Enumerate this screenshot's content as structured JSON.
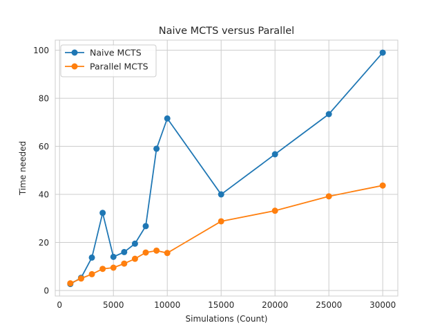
{
  "chart_data": {
    "type": "line",
    "title": "Naive MCTS versus Parallel",
    "xlabel": "Simulations (Count)",
    "ylabel": "Time needed",
    "xlim": [
      -400,
      31400
    ],
    "ylim": [
      -2.3,
      104.2
    ],
    "xticks": [
      0,
      5000,
      10000,
      15000,
      20000,
      25000,
      30000
    ],
    "yticks": [
      0,
      20,
      40,
      60,
      80,
      100
    ],
    "grid": true,
    "legend_position": "top-left",
    "x": [
      1000,
      2000,
      3000,
      4000,
      5000,
      6000,
      7000,
      8000,
      9000,
      10000,
      15000,
      20000,
      25000,
      30000
    ],
    "series": [
      {
        "name": "Naive MCTS",
        "color": "#1f77b4",
        "values": [
          2.7,
          5.3,
          13.7,
          32.3,
          14.0,
          16.0,
          19.5,
          26.8,
          59.0,
          71.6,
          40.0,
          56.7,
          73.4,
          99.0
        ]
      },
      {
        "name": "Parallel MCTS",
        "color": "#ff7f0e",
        "values": [
          3.0,
          5.0,
          6.8,
          9.0,
          9.5,
          11.2,
          13.2,
          15.8,
          16.6,
          15.6,
          28.8,
          33.2,
          39.2,
          43.7
        ]
      }
    ]
  }
}
